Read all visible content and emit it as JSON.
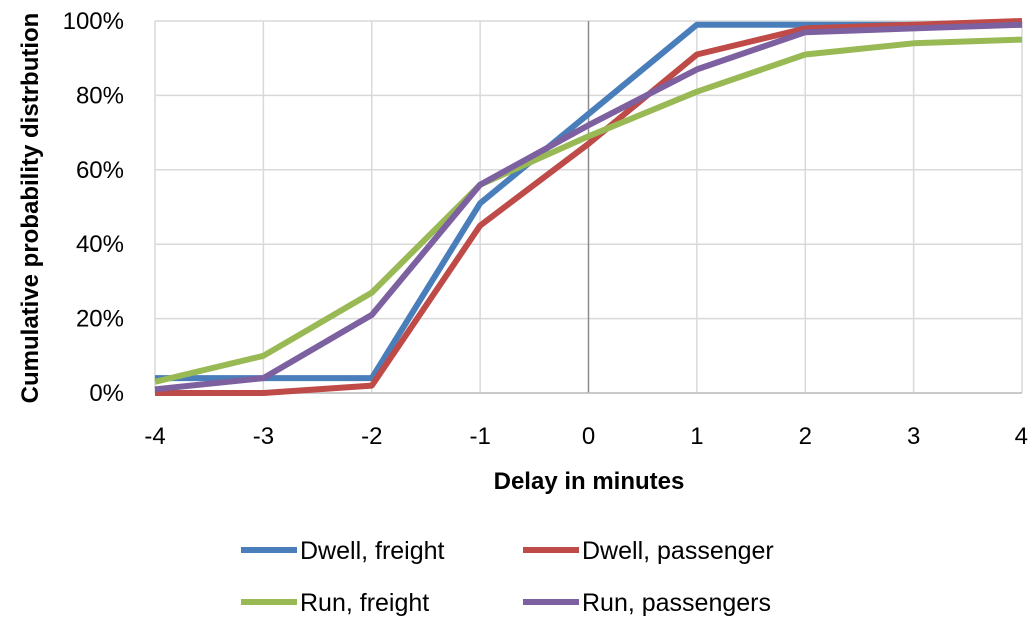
{
  "chart_data": {
    "type": "line",
    "title": "",
    "xlabel": "Delay in minutes",
    "ylabel": "Cumulative probability distrbution",
    "x": [
      -4,
      -3,
      -2,
      -1,
      0,
      1,
      2,
      3,
      4
    ],
    "x_tick_labels": [
      "-4",
      "-3",
      "-2",
      "-1",
      "0",
      "1",
      "2",
      "3",
      "4"
    ],
    "y_tick_labels": [
      "0%",
      "20%",
      "40%",
      "60%",
      "80%",
      "100%"
    ],
    "y_ticks": [
      0,
      20,
      40,
      60,
      80,
      100
    ],
    "xlim": [
      -4,
      4
    ],
    "ylim": [
      0,
      100
    ],
    "y_unit": "%",
    "grid": true,
    "legend_position": "bottom",
    "series": [
      {
        "name": "Dwell, freight",
        "color": "#4a7ebb",
        "values": [
          4,
          4,
          4,
          51,
          75,
          99,
          99,
          99,
          99
        ]
      },
      {
        "name": "Dwell, passenger",
        "color": "#be4b48",
        "values": [
          0,
          0,
          2,
          45,
          67,
          91,
          98,
          99,
          100
        ]
      },
      {
        "name": "Run, freight",
        "color": "#98b954",
        "values": [
          3,
          10,
          27,
          56,
          69,
          81,
          91,
          94,
          95
        ]
      },
      {
        "name": "Run, passengers",
        "color": "#7d60a0",
        "values": [
          1,
          4,
          21,
          56,
          72,
          87,
          97,
          98,
          99
        ]
      }
    ]
  }
}
